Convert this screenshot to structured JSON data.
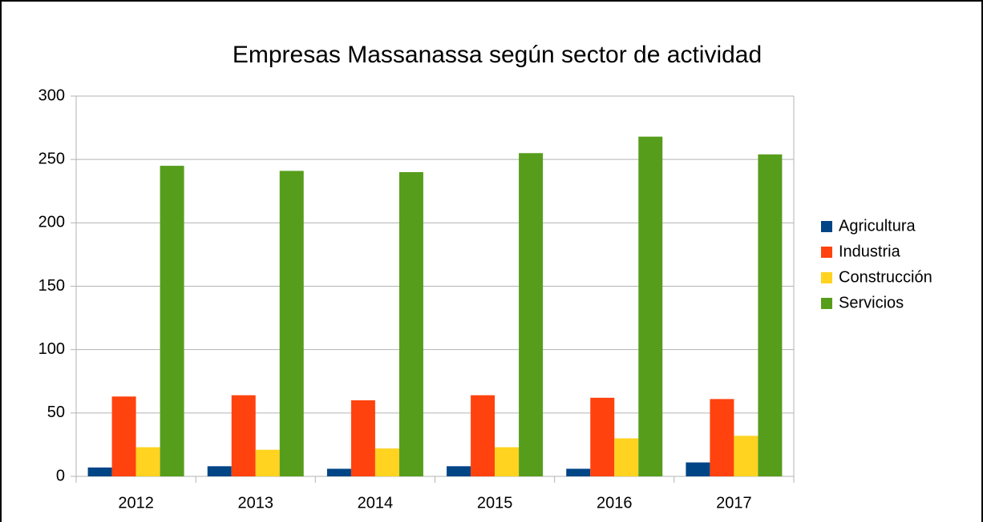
{
  "chart_data": {
    "type": "bar",
    "title": "Empresas Massanassa según sector de actividad",
    "categories": [
      "2012",
      "2013",
      "2014",
      "2015",
      "2016",
      "2017"
    ],
    "series": [
      {
        "name": "Agricultura",
        "color": "#004586",
        "values": [
          7,
          8,
          6,
          8,
          6,
          11
        ]
      },
      {
        "name": "Industria",
        "color": "#ff420e",
        "values": [
          63,
          64,
          60,
          64,
          62,
          61
        ]
      },
      {
        "name": "Construcción",
        "color": "#ffd320",
        "values": [
          23,
          21,
          22,
          23,
          30,
          32
        ]
      },
      {
        "name": "Servicios",
        "color": "#579d1c",
        "values": [
          245,
          241,
          240,
          255,
          268,
          254
        ]
      }
    ],
    "ylim": [
      0,
      300
    ],
    "yticks": [
      0,
      50,
      100,
      150,
      200,
      250,
      300
    ],
    "grid": true,
    "legend": "right"
  }
}
